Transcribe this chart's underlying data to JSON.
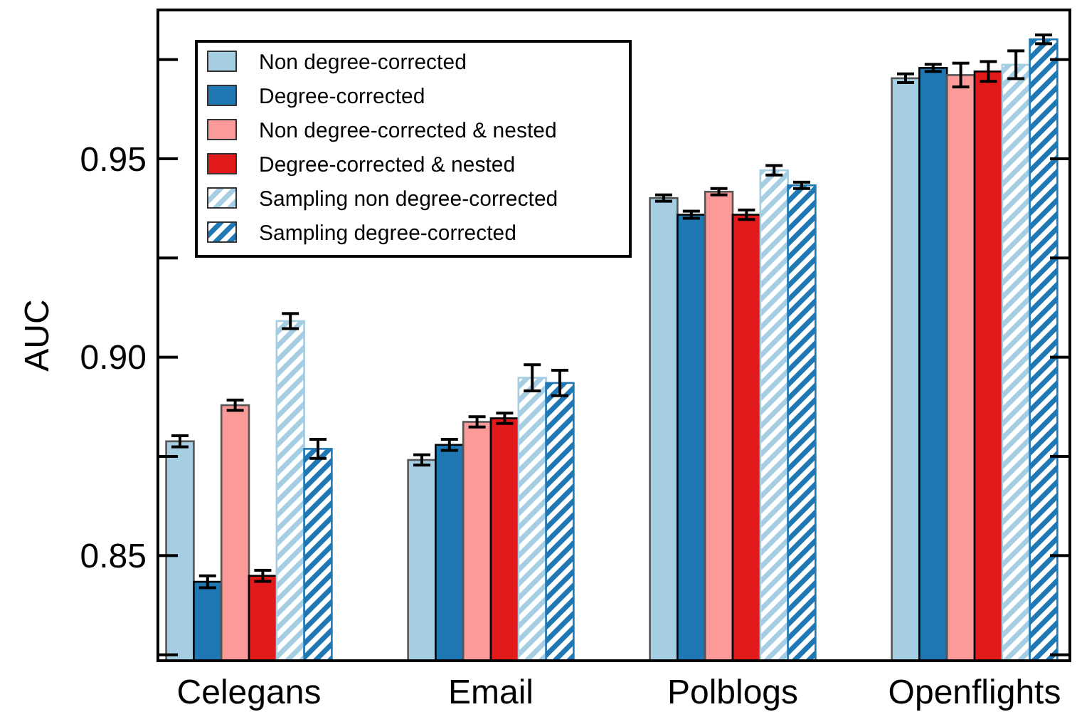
{
  "chart_data": {
    "type": "bar",
    "ylabel": "AUC",
    "categories": [
      "Celegans",
      "Email",
      "Polblogs",
      "Openflights"
    ],
    "ylim": [
      0.8235,
      0.9875
    ],
    "yticks": [
      {
        "value": 0.825,
        "label": null
      },
      0.85,
      {
        "value": 0.875,
        "label": null
      },
      {
        "value": 0.9,
        "label": "0.90"
      },
      {
        "value": 0.925,
        "label": null
      },
      0.95,
      {
        "value": 0.975,
        "label": null
      }
    ],
    "legend": "top left",
    "grid": false,
    "series": [
      {
        "name": "Non degree-corrected",
        "color": "#a6cee3",
        "values": [
          0.8788,
          0.8741,
          0.9401,
          0.9703
        ],
        "errors": [
          0.0014,
          0.0013,
          0.0008,
          0.0011
        ]
      },
      {
        "name": "Degree-corrected",
        "color": "#1f78b4",
        "values": [
          0.8434,
          0.8779,
          0.9359,
          0.9729
        ],
        "errors": [
          0.0015,
          0.0014,
          0.0009,
          0.0009
        ]
      },
      {
        "name": "Non degree-corrected & nested",
        "color": "#fb9a99",
        "values": [
          0.8879,
          0.8837,
          0.9417,
          0.9711
        ],
        "errors": [
          0.0013,
          0.0013,
          0.0008,
          0.003
        ]
      },
      {
        "name": "Degree-corrected & nested",
        "color": "#e31a1c",
        "values": [
          0.8449,
          0.8846,
          0.9359,
          0.972
        ],
        "errors": [
          0.0014,
          0.0013,
          0.0012,
          0.0025
        ]
      },
      {
        "name": "Sampling non degree-corrected",
        "color": "#a6cee3",
        "values": [
          0.9091,
          0.8948,
          0.9471,
          0.9737
        ],
        "errors": [
          0.0019,
          0.0033,
          0.0012,
          0.0035
        ]
      },
      {
        "name": "Sampling degree-corrected",
        "color": "#1f78b4",
        "values": [
          0.8769,
          0.8935,
          0.9433,
          0.9801
        ],
        "errors": [
          0.0024,
          0.0032,
          0.0008,
          0.0011
        ]
      }
    ]
  }
}
